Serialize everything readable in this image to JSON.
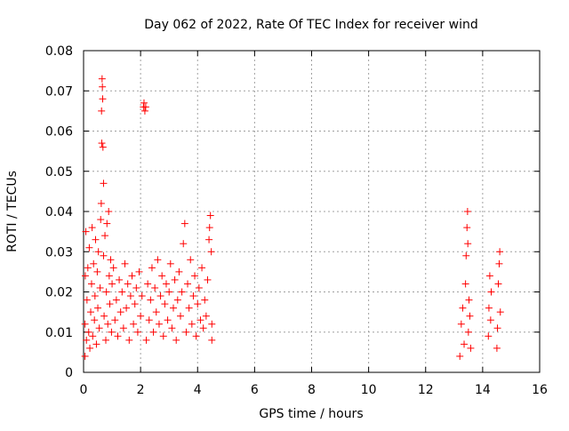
{
  "chart_data": {
    "type": "scatter",
    "title": "Day 062 of 2022, Rate Of TEC Index for receiver wind",
    "xlabel": "GPS time / hours",
    "ylabel": "ROTI / TECUs",
    "xlim": [
      0,
      16
    ],
    "ylim": [
      0,
      0.08
    ],
    "xticks": [
      0,
      2,
      4,
      6,
      8,
      10,
      12,
      14,
      16
    ],
    "xtick_labels": [
      "0",
      "2",
      "4",
      "6",
      "8",
      "10",
      "12",
      "14",
      "16"
    ],
    "yticks": [
      0,
      0.01,
      0.02,
      0.03,
      0.04,
      0.05,
      0.06,
      0.07,
      0.08
    ],
    "ytick_labels": [
      "0",
      "0.01",
      "0.02",
      "0.03",
      "0.04",
      "0.05",
      "0.06",
      "0.07",
      "0.08"
    ],
    "grid": true,
    "marker": "+",
    "marker_color": "#ff0000",
    "series": [
      {
        "name": "ROTI",
        "points": [
          [
            0.05,
            0.004
          ],
          [
            0.05,
            0.012
          ],
          [
            0.06,
            0.024
          ],
          [
            0.08,
            0.035
          ],
          [
            0.1,
            0.008
          ],
          [
            0.12,
            0.018
          ],
          [
            0.15,
            0.026
          ],
          [
            0.18,
            0.01
          ],
          [
            0.2,
            0.031
          ],
          [
            0.22,
            0.006
          ],
          [
            0.25,
            0.015
          ],
          [
            0.28,
            0.022
          ],
          [
            0.3,
            0.036
          ],
          [
            0.32,
            0.009
          ],
          [
            0.35,
            0.027
          ],
          [
            0.38,
            0.013
          ],
          [
            0.4,
            0.019
          ],
          [
            0.42,
            0.033
          ],
          [
            0.45,
            0.007
          ],
          [
            0.48,
            0.025
          ],
          [
            0.5,
            0.016
          ],
          [
            0.52,
            0.03
          ],
          [
            0.55,
            0.011
          ],
          [
            0.58,
            0.021
          ],
          [
            0.6,
            0.038
          ],
          [
            0.62,
            0.042
          ],
          [
            0.63,
            0.065
          ],
          [
            0.64,
            0.057
          ],
          [
            0.65,
            0.073
          ],
          [
            0.66,
            0.071
          ],
          [
            0.67,
            0.068
          ],
          [
            0.68,
            0.056
          ],
          [
            0.7,
            0.047
          ],
          [
            0.7,
            0.029
          ],
          [
            0.72,
            0.014
          ],
          [
            0.75,
            0.034
          ],
          [
            0.78,
            0.008
          ],
          [
            0.8,
            0.02
          ],
          [
            0.82,
            0.037
          ],
          [
            0.85,
            0.012
          ],
          [
            0.88,
            0.04
          ],
          [
            0.9,
            0.024
          ],
          [
            0.92,
            0.017
          ],
          [
            0.95,
            0.028
          ],
          [
            0.98,
            0.01
          ],
          [
            1.0,
            0.022
          ],
          [
            1.05,
            0.026
          ],
          [
            1.1,
            0.013
          ],
          [
            1.15,
            0.018
          ],
          [
            1.2,
            0.009
          ],
          [
            1.25,
            0.023
          ],
          [
            1.3,
            0.015
          ],
          [
            1.35,
            0.02
          ],
          [
            1.4,
            0.011
          ],
          [
            1.45,
            0.027
          ],
          [
            1.5,
            0.016
          ],
          [
            1.55,
            0.022
          ],
          [
            1.6,
            0.008
          ],
          [
            1.65,
            0.019
          ],
          [
            1.7,
            0.024
          ],
          [
            1.75,
            0.012
          ],
          [
            1.8,
            0.017
          ],
          [
            1.85,
            0.021
          ],
          [
            1.9,
            0.01
          ],
          [
            1.95,
            0.025
          ],
          [
            2.0,
            0.014
          ],
          [
            2.05,
            0.019
          ],
          [
            2.1,
            0.066
          ],
          [
            2.12,
            0.067
          ],
          [
            2.15,
            0.065
          ],
          [
            2.18,
            0.066
          ],
          [
            2.2,
            0.008
          ],
          [
            2.25,
            0.022
          ],
          [
            2.3,
            0.013
          ],
          [
            2.35,
            0.018
          ],
          [
            2.4,
            0.026
          ],
          [
            2.45,
            0.01
          ],
          [
            2.5,
            0.021
          ],
          [
            2.55,
            0.015
          ],
          [
            2.6,
            0.028
          ],
          [
            2.65,
            0.012
          ],
          [
            2.7,
            0.019
          ],
          [
            2.75,
            0.024
          ],
          [
            2.8,
            0.009
          ],
          [
            2.85,
            0.017
          ],
          [
            2.9,
            0.022
          ],
          [
            2.95,
            0.013
          ],
          [
            3.0,
            0.02
          ],
          [
            3.05,
            0.027
          ],
          [
            3.1,
            0.011
          ],
          [
            3.15,
            0.016
          ],
          [
            3.2,
            0.023
          ],
          [
            3.25,
            0.008
          ],
          [
            3.3,
            0.018
          ],
          [
            3.35,
            0.025
          ],
          [
            3.4,
            0.014
          ],
          [
            3.45,
            0.02
          ],
          [
            3.5,
            0.032
          ],
          [
            3.55,
            0.037
          ],
          [
            3.6,
            0.01
          ],
          [
            3.65,
            0.022
          ],
          [
            3.7,
            0.016
          ],
          [
            3.75,
            0.028
          ],
          [
            3.8,
            0.012
          ],
          [
            3.85,
            0.019
          ],
          [
            3.9,
            0.024
          ],
          [
            3.95,
            0.009
          ],
          [
            4.0,
            0.017
          ],
          [
            4.05,
            0.021
          ],
          [
            4.1,
            0.013
          ],
          [
            4.15,
            0.026
          ],
          [
            4.2,
            0.011
          ],
          [
            4.25,
            0.018
          ],
          [
            4.3,
            0.014
          ],
          [
            4.35,
            0.023
          ],
          [
            4.4,
            0.033
          ],
          [
            4.42,
            0.036
          ],
          [
            4.45,
            0.039
          ],
          [
            4.48,
            0.03
          ],
          [
            4.5,
            0.012
          ],
          [
            4.5,
            0.008
          ],
          [
            13.2,
            0.004
          ],
          [
            13.25,
            0.012
          ],
          [
            13.3,
            0.016
          ],
          [
            13.35,
            0.007
          ],
          [
            13.4,
            0.022
          ],
          [
            13.42,
            0.029
          ],
          [
            13.45,
            0.036
          ],
          [
            13.47,
            0.04
          ],
          [
            13.48,
            0.032
          ],
          [
            13.5,
            0.01
          ],
          [
            13.52,
            0.018
          ],
          [
            13.55,
            0.014
          ],
          [
            13.58,
            0.006
          ],
          [
            14.2,
            0.009
          ],
          [
            14.22,
            0.016
          ],
          [
            14.25,
            0.024
          ],
          [
            14.28,
            0.013
          ],
          [
            14.3,
            0.02
          ],
          [
            14.5,
            0.006
          ],
          [
            14.52,
            0.011
          ],
          [
            14.55,
            0.022
          ],
          [
            14.58,
            0.027
          ],
          [
            14.6,
            0.03
          ],
          [
            14.62,
            0.015
          ]
        ]
      }
    ]
  }
}
